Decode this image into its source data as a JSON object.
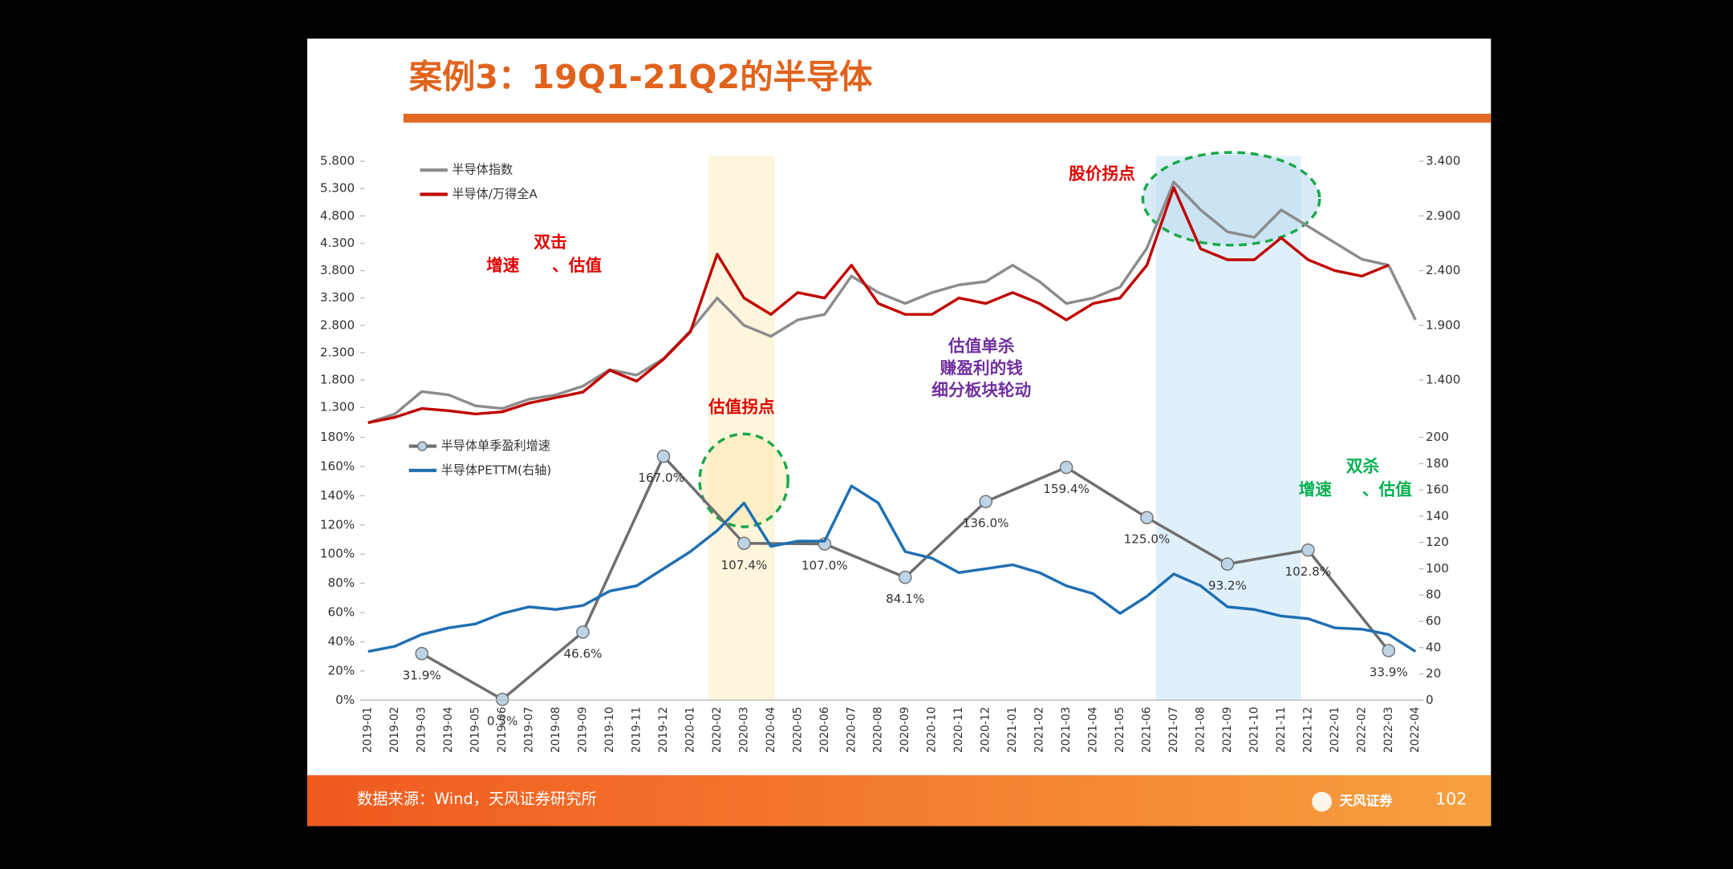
{
  "header": {
    "title": "案例3：19Q1-21Q2的半导体"
  },
  "chart_data": [
    {
      "type": "line",
      "legend": "upper left",
      "ylim": [
        1.0,
        5.8
      ],
      "yticks": [
        {
          "value": 1.3,
          "label": "1.300"
        },
        {
          "value": 1.8,
          "label": "1.800"
        },
        {
          "value": 2.3,
          "label": "2.300"
        },
        {
          "value": 2.8,
          "label": "2.800"
        },
        {
          "value": 3.3,
          "label": "3.300"
        },
        {
          "value": 3.8,
          "label": "3.800"
        },
        {
          "value": 4.3,
          "label": "4.300"
        },
        {
          "value": 4.8,
          "label": "4.800"
        },
        {
          "value": 5.3,
          "label": "5.300"
        },
        {
          "value": 5.8,
          "label": "5.800"
        }
      ],
      "y2lim": [
        1.0,
        3.4
      ],
      "y2ticks": [
        {
          "value": 1.4,
          "label": "1.400"
        },
        {
          "value": 1.9,
          "label": "1.900"
        },
        {
          "value": 2.4,
          "label": "2.400"
        },
        {
          "value": 2.9,
          "label": "2.900"
        },
        {
          "value": 3.4,
          "label": "3.400"
        }
      ],
      "series": [
        {
          "name": "半导体指数",
          "color": "#8c8c8c",
          "values": [
            1.02,
            1.18,
            1.59,
            1.53,
            1.33,
            1.28,
            1.45,
            1.53,
            1.69,
            1.99,
            1.89,
            2.19,
            2.7,
            3.3,
            2.8,
            2.6,
            2.9,
            3.0,
            3.7,
            3.4,
            3.2,
            3.4,
            3.54,
            3.6,
            3.9,
            3.6,
            3.2,
            3.3,
            3.5,
            4.21,
            5.42,
            4.91,
            4.51,
            4.41,
            4.91,
            4.61,
            4.31,
            4.01,
            3.9,
            2.9
          ]
        },
        {
          "name": "半导体/万得全A",
          "color": "#c00000",
          "axis": "y2",
          "values": [
            1.01,
            1.06,
            1.14,
            1.12,
            1.09,
            1.11,
            1.19,
            1.24,
            1.29,
            1.49,
            1.39,
            1.59,
            1.84,
            2.55,
            2.15,
            2.0,
            2.2,
            2.15,
            2.45,
            2.1,
            2.0,
            2.0,
            2.15,
            2.1,
            2.2,
            2.1,
            1.95,
            2.1,
            2.15,
            2.45,
            3.16,
            2.6,
            2.5,
            2.5,
            2.7,
            2.5,
            2.4,
            2.35,
            2.45,
            null
          ]
        }
      ],
      "annotations": [
        "双击",
        "增速",
        "、估值",
        "股价拐点",
        "估值单杀",
        "赚盈利的钱",
        "细分板块轮动"
      ]
    },
    {
      "type": "line",
      "legend": "upper left",
      "categories": [
        "2019-01",
        "2019-02",
        "2019-03",
        "2019-04",
        "2019-05",
        "2019-06",
        "2019-07",
        "2019-08",
        "2019-09",
        "2019-10",
        "2019-11",
        "2019-12",
        "2020-01",
        "2020-02",
        "2020-03",
        "2020-04",
        "2020-05",
        "2020-06",
        "2020-07",
        "2020-08",
        "2020-09",
        "2020-10",
        "2020-11",
        "2020-12",
        "2021-01",
        "2021-02",
        "2021-03",
        "2021-04",
        "2021-05",
        "2021-06",
        "2021-07",
        "2021-08",
        "2021-09",
        "2021-10",
        "2021-11",
        "2021-12",
        "2022-01",
        "2022-02",
        "2022-03",
        "2022-04"
      ],
      "ylim": [
        0,
        180
      ],
      "yticks": [
        {
          "value": 0,
          "label": "0%"
        },
        {
          "value": 20,
          "label": "20%"
        },
        {
          "value": 40,
          "label": "40%"
        },
        {
          "value": 60,
          "label": "60%"
        },
        {
          "value": 80,
          "label": "80%"
        },
        {
          "value": 100,
          "label": "100%"
        },
        {
          "value": 120,
          "label": "120%"
        },
        {
          "value": 140,
          "label": "140%"
        },
        {
          "value": 160,
          "label": "160%"
        },
        {
          "value": 180,
          "label": "180%"
        }
      ],
      "y2lim": [
        0,
        200
      ],
      "y2ticks": [
        0,
        20,
        40,
        60,
        80,
        100,
        120,
        140,
        160,
        180,
        200
      ],
      "series": [
        {
          "name": "半导体单季盈利增速",
          "color": "#6e6e6e",
          "marker_color": "#bdd3e6",
          "x": [
            "2019-03",
            "2019-06",
            "2019-09",
            "2019-12",
            "2020-03",
            "2020-06",
            "2020-09",
            "2020-12",
            "2021-03",
            "2021-06",
            "2021-09",
            "2021-12",
            "2022-03"
          ],
          "values": [
            31.9,
            0.5,
            46.6,
            167.0,
            107.4,
            107.0,
            84.1,
            136.0,
            159.4,
            125.0,
            93.2,
            102.8,
            33.9
          ],
          "value_labels": [
            "31.9%",
            "0.5%",
            "46.6%",
            "167.0%",
            "107.4%",
            "107.0%",
            "84.1%",
            "136.0%",
            "159.4%",
            "125.0%",
            "93.2%",
            "102.8%",
            "33.9%"
          ]
        },
        {
          "name": "半导体PETTM(右轴)",
          "color": "#1f6fb2",
          "axis": "y2",
          "values": [
            37,
            41,
            50,
            55,
            58,
            66,
            71,
            69,
            72,
            83,
            87,
            100,
            113,
            129,
            150,
            117,
            121,
            121,
            163,
            150,
            113,
            108,
            97,
            100,
            103,
            97,
            87,
            81,
            66,
            79,
            96,
            87,
            71,
            69,
            64,
            62,
            55,
            54,
            50,
            37
          ]
        }
      ],
      "annotations": [
        "估值拐点",
        "双杀",
        "增速",
        "、估值"
      ]
    }
  ],
  "footer": {
    "source": "数据来源：Wind，天风证券研究所",
    "brand": "天风证券",
    "page": "102"
  }
}
